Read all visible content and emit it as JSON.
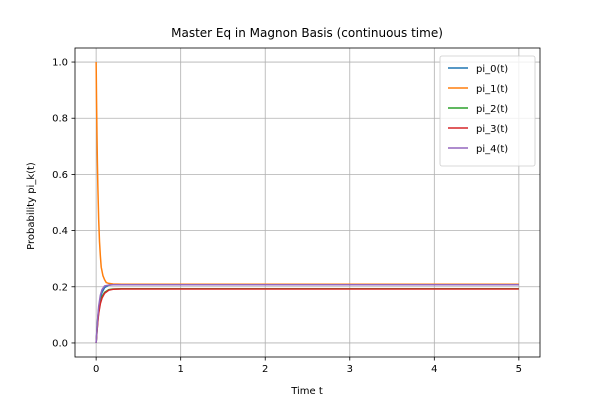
{
  "chart_data": {
    "type": "line",
    "title": "Master Eq in Magnon Basis (continuous time)",
    "xlabel": "Time t",
    "ylabel": "Probability pi_k(t)",
    "xlim": [
      -0.25,
      5.25
    ],
    "ylim": [
      -0.05,
      1.05
    ],
    "xticks": [
      0,
      1,
      2,
      3,
      4,
      5
    ],
    "yticks": [
      0.0,
      0.2,
      0.4,
      0.6,
      0.8,
      1.0
    ],
    "xtick_labels": [
      "0",
      "1",
      "2",
      "3",
      "4",
      "5"
    ],
    "ytick_labels": [
      "0.0",
      "0.2",
      "0.4",
      "0.6",
      "0.8",
      "1.0"
    ],
    "grid": true,
    "legend_position": "top-right",
    "series": [
      {
        "name": "pi_0(t)",
        "color": "#1f77b4",
        "x": [
          0,
          0.01,
          0.02,
          0.03,
          0.05,
          0.07,
          0.1,
          0.15,
          0.2,
          0.3,
          0.5,
          1,
          2,
          3,
          4,
          5
        ],
        "y": [
          0,
          0.05,
          0.09,
          0.12,
          0.16,
          0.18,
          0.197,
          0.206,
          0.208,
          0.209,
          0.209,
          0.209,
          0.209,
          0.209,
          0.209,
          0.209
        ]
      },
      {
        "name": "pi_1(t)",
        "color": "#ff7f0e",
        "x": [
          0,
          0.005,
          0.01,
          0.015,
          0.02,
          0.03,
          0.04,
          0.05,
          0.06,
          0.08,
          0.1,
          0.12,
          0.15,
          0.2,
          0.3,
          0.5,
          1,
          2,
          3,
          4,
          5
        ],
        "y": [
          1.0,
          0.86,
          0.74,
          0.64,
          0.56,
          0.44,
          0.36,
          0.31,
          0.27,
          0.24,
          0.225,
          0.215,
          0.212,
          0.21,
          0.209,
          0.209,
          0.209,
          0.209,
          0.209,
          0.209,
          0.209
        ]
      },
      {
        "name": "pi_2(t)",
        "color": "#2ca02c",
        "x": [
          0,
          0.01,
          0.02,
          0.03,
          0.05,
          0.07,
          0.1,
          0.15,
          0.2,
          0.3,
          0.5,
          1,
          2,
          3,
          4,
          5
        ],
        "y": [
          0,
          0.04,
          0.08,
          0.11,
          0.145,
          0.165,
          0.18,
          0.19,
          0.192,
          0.193,
          0.193,
          0.193,
          0.193,
          0.193,
          0.193,
          0.193
        ]
      },
      {
        "name": "pi_3(t)",
        "color": "#d62728",
        "x": [
          0,
          0.01,
          0.02,
          0.03,
          0.05,
          0.07,
          0.1,
          0.15,
          0.2,
          0.3,
          0.5,
          1,
          2,
          3,
          4,
          5
        ],
        "y": [
          0,
          0.04,
          0.075,
          0.105,
          0.14,
          0.16,
          0.177,
          0.188,
          0.191,
          0.192,
          0.192,
          0.192,
          0.192,
          0.192,
          0.192,
          0.192
        ]
      },
      {
        "name": "pi_4(t)",
        "color": "#9467bd",
        "x": [
          0,
          0.01,
          0.02,
          0.03,
          0.05,
          0.07,
          0.1,
          0.15,
          0.2,
          0.3,
          0.5,
          1,
          2,
          3,
          4,
          5
        ],
        "y": [
          0,
          0.05,
          0.095,
          0.13,
          0.17,
          0.19,
          0.203,
          0.206,
          0.207,
          0.207,
          0.207,
          0.207,
          0.207,
          0.207,
          0.207,
          0.207
        ]
      }
    ]
  }
}
